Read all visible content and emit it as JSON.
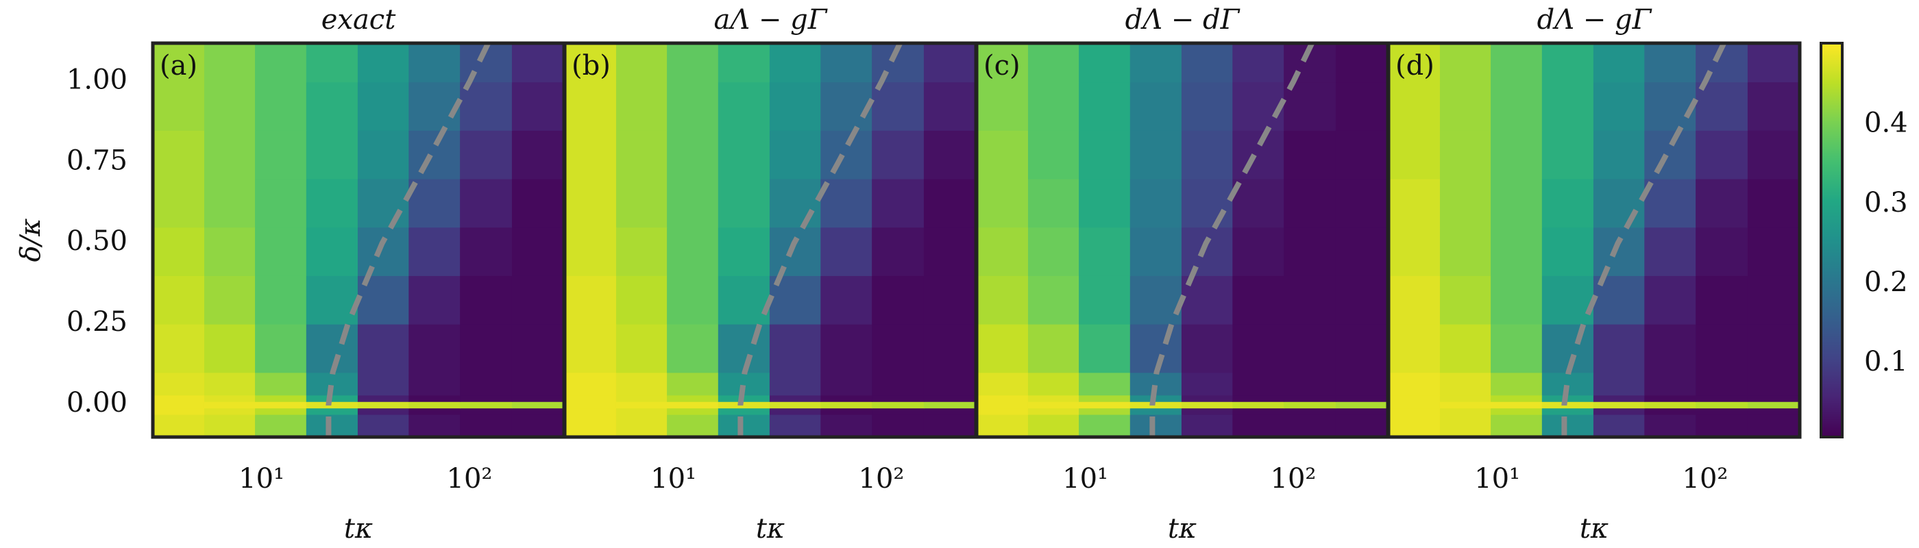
{
  "chart_data": [
    {
      "type": "heatmap",
      "title": "exact",
      "panel_label": "(a)",
      "xlabel": "tκ",
      "ylabel": "δ/κ",
      "log_x": true,
      "xlim": [
        3,
        285
      ],
      "ylim": [
        -0.1,
        1.12
      ],
      "xticks": [
        {
          "value": 10,
          "label": "10¹"
        },
        {
          "value": 100,
          "label": "10²"
        }
      ],
      "yticks": [
        {
          "value": 0,
          "label": "0.00"
        },
        {
          "value": 0.25,
          "label": "0.25"
        },
        {
          "value": 0.5,
          "label": "0.50"
        },
        {
          "value": 0.75,
          "label": "0.75"
        },
        {
          "value": 1,
          "label": "1.00"
        }
      ],
      "x_edges": [
        3,
        5.3,
        9.3,
        16.4,
        29,
        51,
        90,
        160,
        285
      ],
      "y_edges": [
        -0.1,
        -0.03,
        -0.01,
        0.01,
        0.03,
        0.1,
        0.25,
        0.4,
        0.55,
        0.7,
        0.85,
        1.0,
        1.12
      ],
      "z": [
        [
          0.48,
          0.47,
          0.42,
          0.25,
          0.08,
          0.03,
          0.02,
          0.02
        ],
        [
          0.49,
          0.48,
          0.45,
          0.3,
          0.05,
          0.02,
          0.02,
          0.02
        ],
        [
          0.49,
          0.49,
          0.49,
          0.48,
          0.47,
          0.46,
          0.45,
          0.44
        ],
        [
          0.49,
          0.48,
          0.45,
          0.3,
          0.05,
          0.02,
          0.02,
          0.02
        ],
        [
          0.48,
          0.47,
          0.42,
          0.25,
          0.08,
          0.03,
          0.02,
          0.02
        ],
        [
          0.47,
          0.45,
          0.38,
          0.22,
          0.08,
          0.03,
          0.02,
          0.02
        ],
        [
          0.46,
          0.43,
          0.37,
          0.28,
          0.15,
          0.05,
          0.02,
          0.02
        ],
        [
          0.45,
          0.42,
          0.37,
          0.3,
          0.2,
          0.09,
          0.03,
          0.02
        ],
        [
          0.44,
          0.41,
          0.37,
          0.31,
          0.23,
          0.13,
          0.05,
          0.02
        ],
        [
          0.44,
          0.41,
          0.37,
          0.32,
          0.25,
          0.16,
          0.08,
          0.03
        ],
        [
          0.43,
          0.41,
          0.37,
          0.32,
          0.26,
          0.19,
          0.11,
          0.05
        ],
        [
          0.43,
          0.41,
          0.37,
          0.33,
          0.27,
          0.21,
          0.13,
          0.07
        ]
      ],
      "curve": {
        "color": "#888888",
        "x": [
          21,
          21,
          22,
          26,
          38,
          62,
          100,
          123
        ],
        "y": [
          -0.1,
          0,
          0.1,
          0.25,
          0.5,
          0.75,
          1.0,
          1.12
        ]
      }
    },
    {
      "type": "heatmap",
      "title": "aΛ − gΓ",
      "panel_label": "(b)",
      "xlabel": "tκ",
      "log_x": true,
      "xlim": [
        3,
        285
      ],
      "ylim": [
        -0.1,
        1.12
      ],
      "xticks": [
        {
          "value": 10,
          "label": "10¹"
        },
        {
          "value": 100,
          "label": "10²"
        }
      ],
      "x_edges": [
        3,
        5.3,
        9.3,
        16.4,
        29,
        51,
        90,
        160,
        285
      ],
      "y_edges": [
        -0.1,
        -0.03,
        -0.01,
        0.01,
        0.03,
        0.1,
        0.25,
        0.4,
        0.55,
        0.7,
        0.85,
        1.0,
        1.12
      ],
      "z": [
        [
          0.49,
          0.48,
          0.43,
          0.26,
          0.08,
          0.03,
          0.02,
          0.02
        ],
        [
          0.49,
          0.48,
          0.45,
          0.3,
          0.05,
          0.02,
          0.02,
          0.02
        ],
        [
          0.49,
          0.49,
          0.49,
          0.48,
          0.47,
          0.46,
          0.45,
          0.44
        ],
        [
          0.49,
          0.48,
          0.45,
          0.3,
          0.05,
          0.02,
          0.02,
          0.02
        ],
        [
          0.49,
          0.48,
          0.43,
          0.26,
          0.08,
          0.03,
          0.02,
          0.02
        ],
        [
          0.48,
          0.46,
          0.39,
          0.23,
          0.08,
          0.03,
          0.02,
          0.02
        ],
        [
          0.48,
          0.45,
          0.38,
          0.29,
          0.15,
          0.05,
          0.02,
          0.02
        ],
        [
          0.47,
          0.44,
          0.38,
          0.31,
          0.2,
          0.09,
          0.03,
          0.02
        ],
        [
          0.47,
          0.43,
          0.38,
          0.32,
          0.23,
          0.13,
          0.05,
          0.02
        ],
        [
          0.47,
          0.43,
          0.38,
          0.32,
          0.25,
          0.16,
          0.08,
          0.03
        ],
        [
          0.47,
          0.43,
          0.38,
          0.32,
          0.26,
          0.18,
          0.11,
          0.05
        ],
        [
          0.47,
          0.43,
          0.38,
          0.33,
          0.27,
          0.2,
          0.13,
          0.07
        ]
      ],
      "curve": {
        "color": "#888888",
        "x": [
          21,
          21,
          22,
          26,
          38,
          62,
          100,
          123
        ],
        "y": [
          -0.1,
          0,
          0.1,
          0.25,
          0.5,
          0.75,
          1.0,
          1.12
        ]
      }
    },
    {
      "type": "heatmap",
      "title": "dΛ − dΓ",
      "panel_label": "(c)",
      "xlabel": "tκ",
      "log_x": true,
      "xlim": [
        3,
        285
      ],
      "ylim": [
        -0.1,
        1.12
      ],
      "xticks": [
        {
          "value": 10,
          "label": "10¹"
        },
        {
          "value": 100,
          "label": "10²"
        }
      ],
      "x_edges": [
        3,
        5.3,
        9.3,
        16.4,
        29,
        51,
        90,
        160,
        285
      ],
      "y_edges": [
        -0.1,
        -0.03,
        -0.01,
        0.01,
        0.03,
        0.1,
        0.25,
        0.4,
        0.55,
        0.7,
        0.85,
        1.0,
        1.12
      ],
      "z": [
        [
          0.48,
          0.46,
          0.4,
          0.2,
          0.05,
          0.02,
          0.02,
          0.02
        ],
        [
          0.49,
          0.48,
          0.44,
          0.25,
          0.04,
          0.02,
          0.02,
          0.02
        ],
        [
          0.49,
          0.49,
          0.49,
          0.48,
          0.47,
          0.46,
          0.45,
          0.44
        ],
        [
          0.49,
          0.48,
          0.44,
          0.25,
          0.04,
          0.02,
          0.02,
          0.02
        ],
        [
          0.48,
          0.46,
          0.4,
          0.2,
          0.05,
          0.02,
          0.02,
          0.02
        ],
        [
          0.46,
          0.43,
          0.34,
          0.15,
          0.04,
          0.02,
          0.02,
          0.02
        ],
        [
          0.44,
          0.4,
          0.32,
          0.18,
          0.06,
          0.02,
          0.02,
          0.02
        ],
        [
          0.43,
          0.39,
          0.32,
          0.2,
          0.09,
          0.03,
          0.02,
          0.02
        ],
        [
          0.42,
          0.38,
          0.31,
          0.21,
          0.11,
          0.04,
          0.02,
          0.02
        ],
        [
          0.42,
          0.37,
          0.31,
          0.22,
          0.12,
          0.05,
          0.02,
          0.02
        ],
        [
          0.41,
          0.37,
          0.31,
          0.22,
          0.13,
          0.06,
          0.03,
          0.02
        ],
        [
          0.41,
          0.37,
          0.31,
          0.23,
          0.14,
          0.07,
          0.03,
          0.02
        ]
      ],
      "curve": {
        "color": "#888888",
        "x": [
          21,
          21,
          22,
          26,
          38,
          62,
          100,
          123
        ],
        "y": [
          -0.1,
          0,
          0.1,
          0.25,
          0.5,
          0.75,
          1.0,
          1.12
        ]
      }
    },
    {
      "type": "heatmap",
      "title": "dΛ − gΓ",
      "panel_label": "(d)",
      "xlabel": "tκ",
      "log_x": true,
      "xlim": [
        3,
        285
      ],
      "ylim": [
        -0.1,
        1.12
      ],
      "xticks": [
        {
          "value": 10,
          "label": "10¹"
        },
        {
          "value": 100,
          "label": "10²"
        }
      ],
      "x_edges": [
        3,
        5.3,
        9.3,
        16.4,
        29,
        51,
        90,
        160,
        285
      ],
      "y_edges": [
        -0.1,
        -0.03,
        -0.01,
        0.01,
        0.03,
        0.1,
        0.25,
        0.4,
        0.55,
        0.7,
        0.85,
        1.0,
        1.12
      ],
      "z": [
        [
          0.49,
          0.48,
          0.43,
          0.25,
          0.08,
          0.03,
          0.02,
          0.02
        ],
        [
          0.49,
          0.48,
          0.45,
          0.29,
          0.05,
          0.02,
          0.02,
          0.02
        ],
        [
          0.49,
          0.49,
          0.49,
          0.48,
          0.47,
          0.46,
          0.45,
          0.44
        ],
        [
          0.49,
          0.48,
          0.45,
          0.29,
          0.05,
          0.02,
          0.02,
          0.02
        ],
        [
          0.49,
          0.48,
          0.43,
          0.25,
          0.08,
          0.03,
          0.02,
          0.02
        ],
        [
          0.48,
          0.46,
          0.39,
          0.22,
          0.08,
          0.03,
          0.02,
          0.02
        ],
        [
          0.48,
          0.44,
          0.38,
          0.28,
          0.14,
          0.05,
          0.02,
          0.02
        ],
        [
          0.47,
          0.43,
          0.38,
          0.3,
          0.19,
          0.08,
          0.03,
          0.02
        ],
        [
          0.47,
          0.43,
          0.38,
          0.31,
          0.22,
          0.12,
          0.04,
          0.02
        ],
        [
          0.46,
          0.43,
          0.38,
          0.32,
          0.24,
          0.15,
          0.07,
          0.03
        ],
        [
          0.46,
          0.43,
          0.38,
          0.32,
          0.25,
          0.17,
          0.1,
          0.04
        ],
        [
          0.46,
          0.43,
          0.38,
          0.32,
          0.26,
          0.19,
          0.12,
          0.06
        ]
      ],
      "curve": {
        "color": "#888888",
        "x": [
          21,
          21,
          22,
          26,
          38,
          62,
          100,
          123
        ],
        "y": [
          -0.1,
          0,
          0.1,
          0.25,
          0.5,
          0.75,
          1.0,
          1.12
        ]
      }
    },
    {
      "type": "colorbar",
      "colormap": "viridis",
      "clim": [
        0.008,
        0.503
      ],
      "yticks": [
        0.1,
        0.2,
        0.3,
        0.4
      ]
    }
  ]
}
